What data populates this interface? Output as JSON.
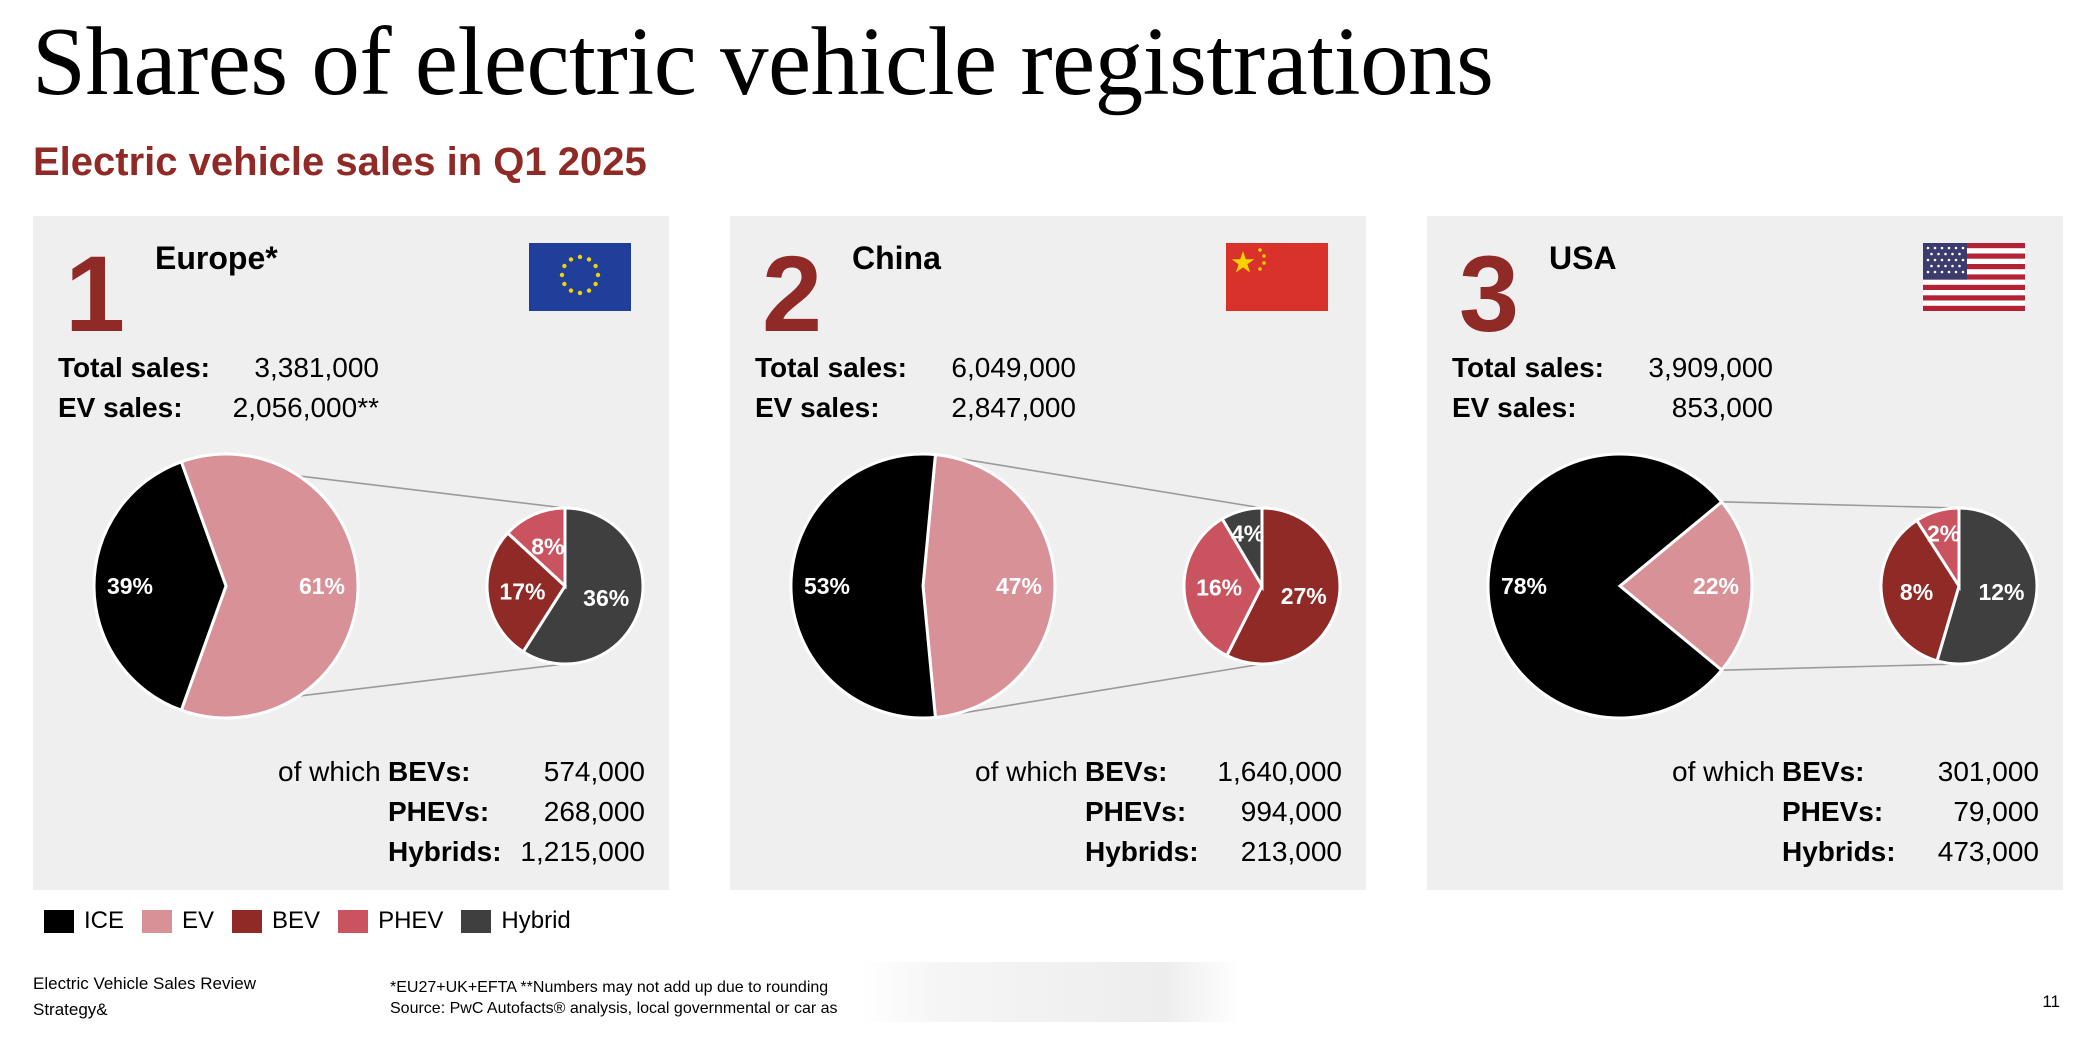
{
  "title": "Shares of electric vehicle registrations",
  "subtitle": "Electric vehicle sales in Q1 2025",
  "labels": {
    "total_sales": "Total sales:",
    "ev_sales": "EV sales:",
    "of_which": "of which",
    "bevs": "BEVs:",
    "phevs": "PHEVs:",
    "hybrids": "Hybrids:"
  },
  "colors": {
    "ice": "#000000",
    "ev": "#d99198",
    "bev": "#8f2a26",
    "phev": "#c9535f",
    "hybrid": "#3f3f3f"
  },
  "regions": [
    {
      "rank": "1",
      "name": "Europe*",
      "flag_icon": "eu-flag-icon",
      "total_sales": "3,381,000",
      "ev_sales": "2,056,000**",
      "bevs": "574,000",
      "phevs": "268,000",
      "hybrids": "1,215,000"
    },
    {
      "rank": "2",
      "name": "China",
      "flag_icon": "china-flag-icon",
      "total_sales": "6,049,000",
      "ev_sales": "2,847,000",
      "bevs": "1,640,000",
      "phevs": "994,000",
      "hybrids": "213,000"
    },
    {
      "rank": "3",
      "name": "USA",
      "flag_icon": "usa-flag-icon",
      "total_sales": "3,909,000",
      "ev_sales": "853,000",
      "bevs": "301,000",
      "phevs": "79,000",
      "hybrids": "473,000"
    }
  ],
  "chart_data": [
    {
      "type": "pie",
      "region": "Europe*",
      "main": {
        "categories": [
          "ICE",
          "EV"
        ],
        "values": [
          39,
          61
        ],
        "labels": [
          "39%",
          "61%"
        ]
      },
      "breakdown": {
        "categories": [
          "Hybrid",
          "BEV",
          "PHEV"
        ],
        "values": [
          36,
          17,
          8
        ],
        "labels": [
          "36%",
          "17%",
          "8%"
        ]
      }
    },
    {
      "type": "pie",
      "region": "China",
      "main": {
        "categories": [
          "ICE",
          "EV"
        ],
        "values": [
          53,
          47
        ],
        "labels": [
          "53%",
          "47%"
        ]
      },
      "breakdown": {
        "categories": [
          "BEV",
          "PHEV",
          "Hybrid"
        ],
        "values": [
          27,
          16,
          4
        ],
        "labels": [
          "27%",
          "16%",
          "4%"
        ]
      }
    },
    {
      "type": "pie",
      "region": "USA",
      "main": {
        "categories": [
          "ICE",
          "EV"
        ],
        "values": [
          78,
          22
        ],
        "labels": [
          "78%",
          "22%"
        ]
      },
      "breakdown": {
        "categories": [
          "Hybrid",
          "BEV",
          "PHEV"
        ],
        "values": [
          12,
          8,
          2
        ],
        "labels": [
          "12%",
          "8%",
          "2%"
        ]
      }
    }
  ],
  "legend": [
    {
      "label": "ICE",
      "key": "ice"
    },
    {
      "label": "EV",
      "key": "ev"
    },
    {
      "label": "BEV",
      "key": "bev"
    },
    {
      "label": "PHEV",
      "key": "phev"
    },
    {
      "label": "Hybrid",
      "key": "hybrid"
    }
  ],
  "footer": {
    "report_name": "Electric Vehicle Sales Review",
    "brand": "Strategy&",
    "footnote": "*EU27+UK+EFTA **Numbers may not add up due to rounding",
    "source": "Source: PwC Autofacts® analysis, local governmental or car as",
    "page_number": "11"
  }
}
